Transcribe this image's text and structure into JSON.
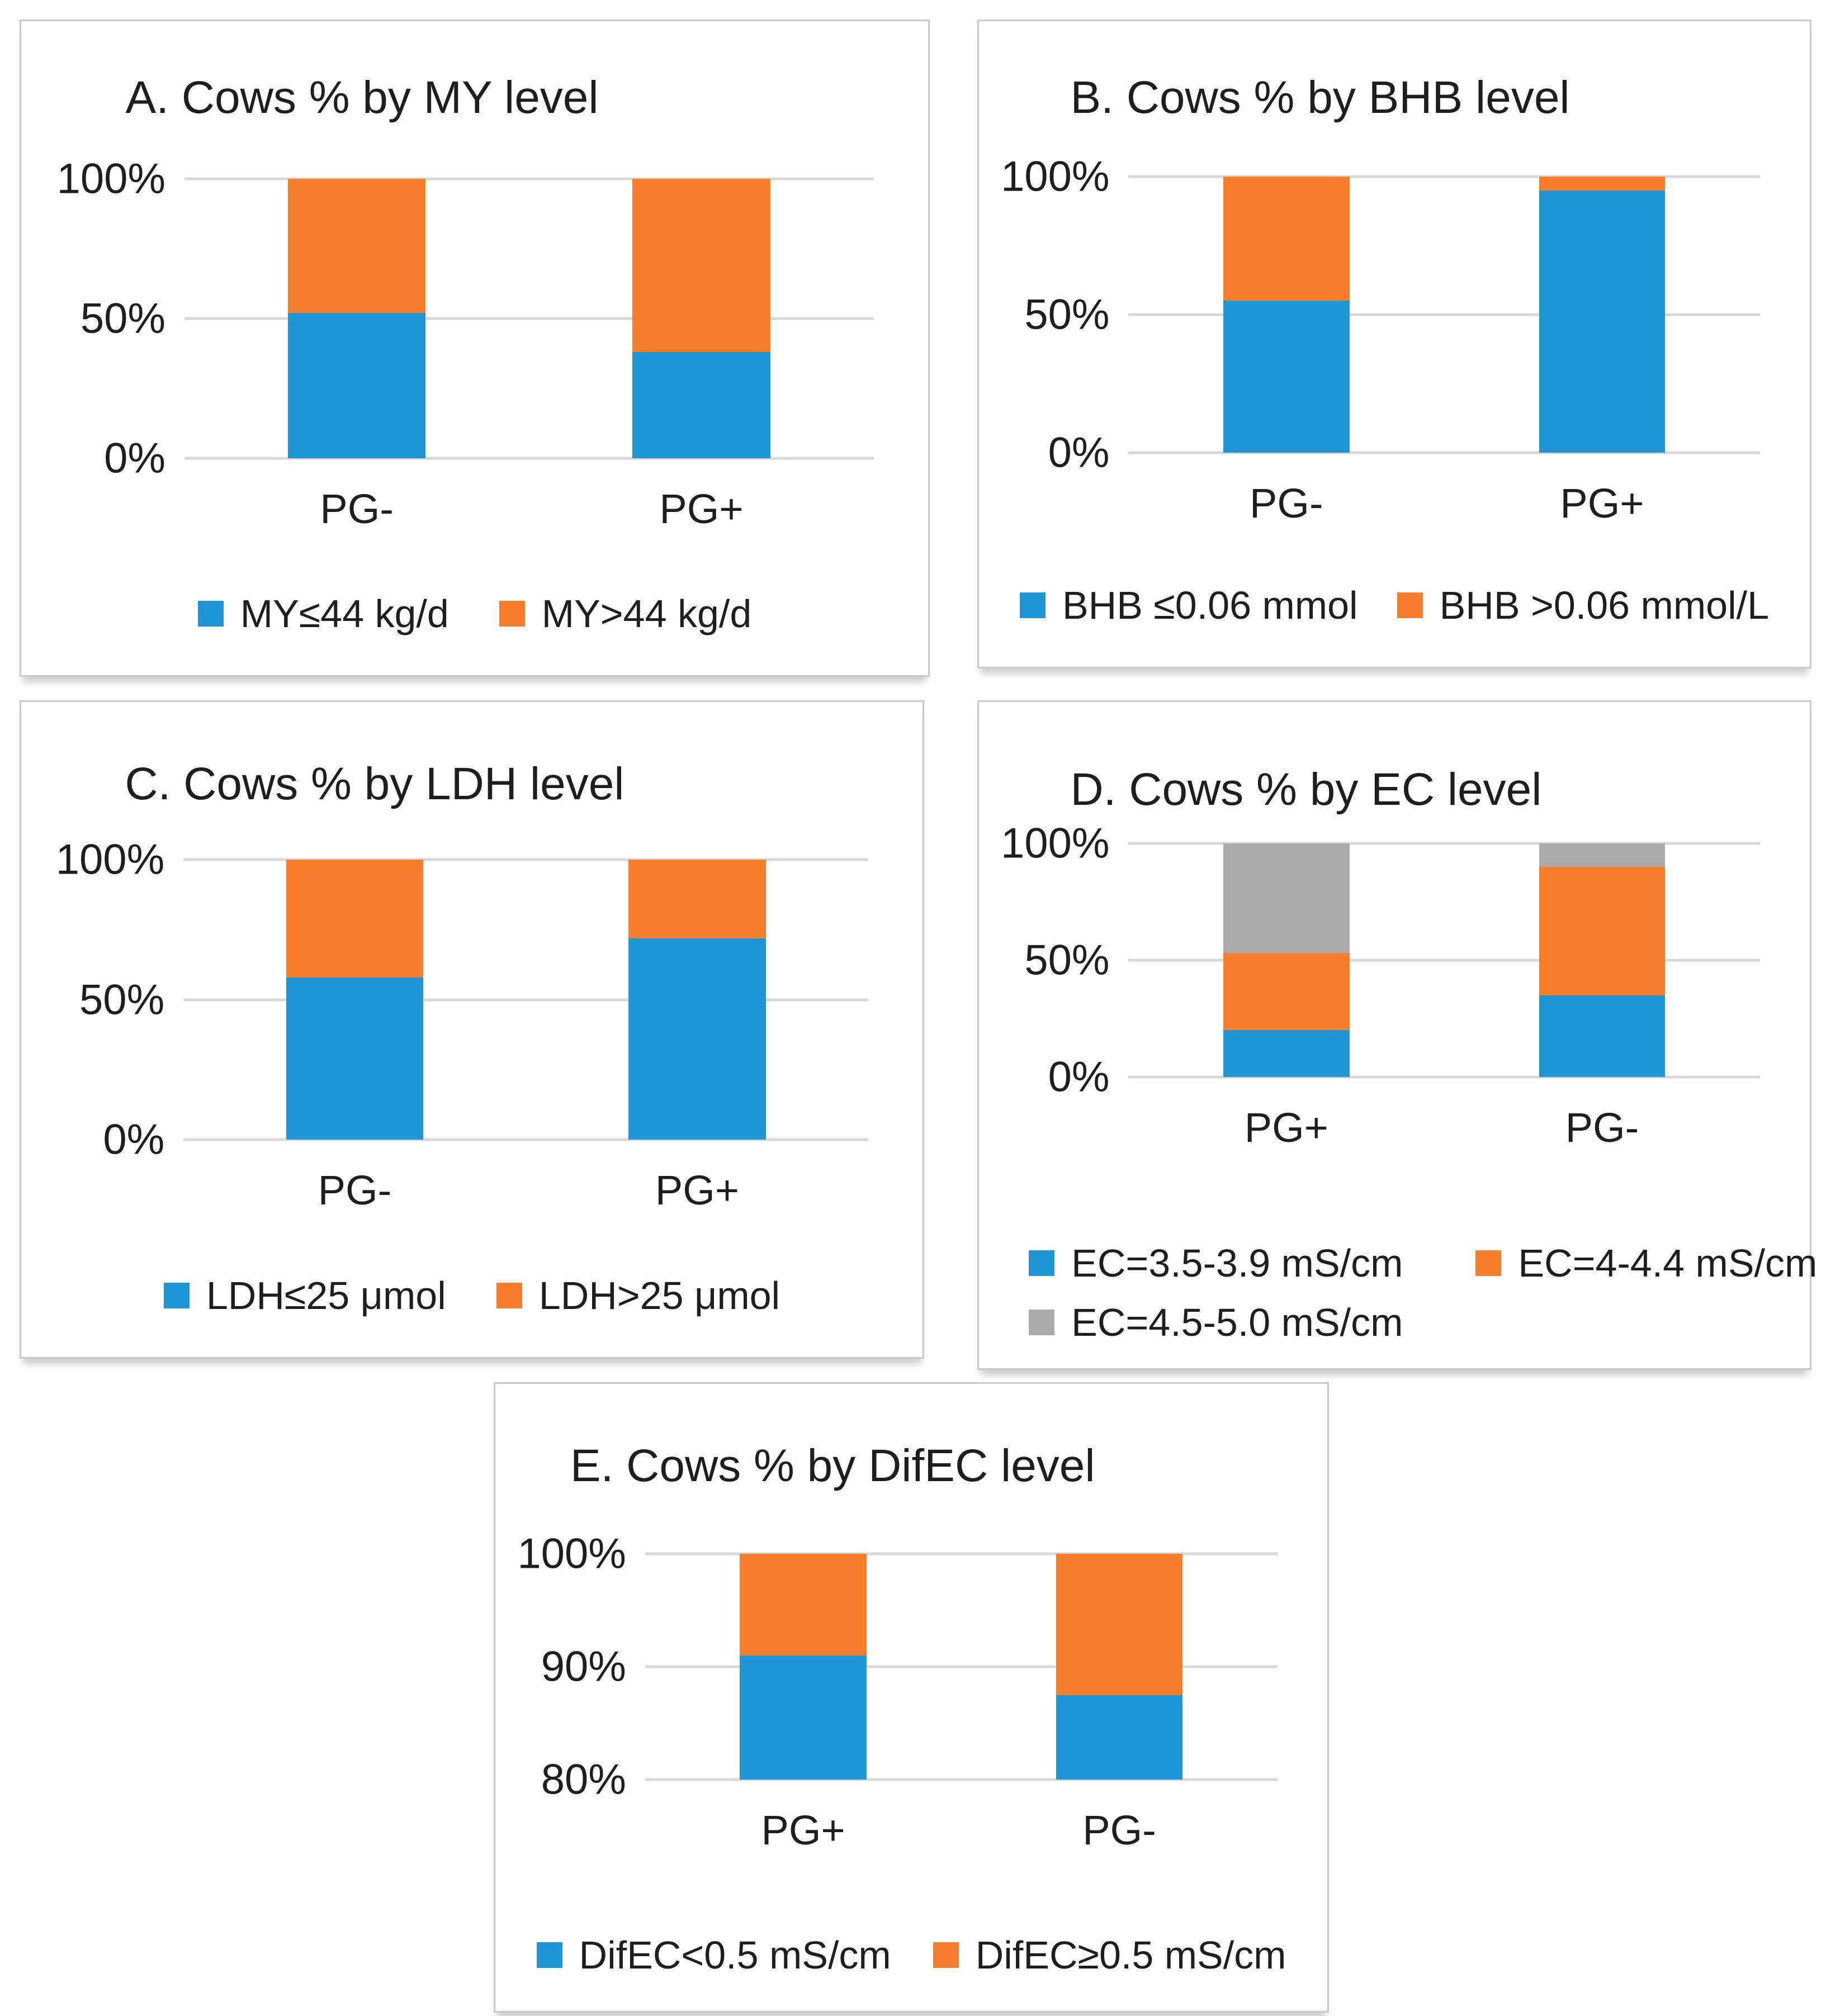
{
  "palette": {
    "blue": "#2196D6",
    "orange": "#F87E2B",
    "gray": "#ABABAB",
    "gridline": "#D8D8D8",
    "text": "#1E1E1E",
    "panel_border": "#C9C9C9"
  },
  "chart_data": [
    {
      "id": "A",
      "type": "bar",
      "subtype": "stacked-100",
      "title": "A. Cows % by MY level",
      "categories": [
        "PG-",
        "PG+"
      ],
      "series": [
        {
          "name": "MY≤44 kg/d",
          "color": "blue",
          "values": [
            52,
            38
          ]
        },
        {
          "name": "MY>44 kg/d",
          "color": "orange",
          "values": [
            48,
            62
          ]
        }
      ],
      "ymin": 0,
      "ymax": 100,
      "yticks": [
        {
          "value": 0,
          "label": "0%"
        },
        {
          "value": 50,
          "label": "50%"
        },
        {
          "value": 100,
          "label": "100%"
        }
      ],
      "grid": true,
      "legend_position": "bottom"
    },
    {
      "id": "B",
      "type": "bar",
      "subtype": "stacked-100",
      "title": "B. Cows % by BHB level",
      "categories": [
        "PG-",
        "PG+"
      ],
      "series": [
        {
          "name": "BHB ≤0.06 mmol",
          "color": "blue",
          "values": [
            55,
            95
          ]
        },
        {
          "name": "BHB >0.06 mmol/L",
          "color": "orange",
          "values": [
            45,
            5
          ]
        }
      ],
      "ymin": 0,
      "ymax": 100,
      "yticks": [
        {
          "value": 0,
          "label": "0%"
        },
        {
          "value": 50,
          "label": "50%"
        },
        {
          "value": 100,
          "label": "100%"
        }
      ],
      "grid": true,
      "legend_position": "bottom"
    },
    {
      "id": "C",
      "type": "bar",
      "subtype": "stacked-100",
      "title": "C. Cows % by LDH level",
      "categories": [
        "PG-",
        "PG+"
      ],
      "series": [
        {
          "name": "LDH≤25 μmol",
          "color": "blue",
          "values": [
            58,
            72
          ]
        },
        {
          "name": "LDH>25 μmol",
          "color": "orange",
          "values": [
            42,
            28
          ]
        }
      ],
      "ymin": 0,
      "ymax": 100,
      "yticks": [
        {
          "value": 0,
          "label": "0%"
        },
        {
          "value": 50,
          "label": "50%"
        },
        {
          "value": 100,
          "label": "100%"
        }
      ],
      "grid": true,
      "legend_position": "bottom"
    },
    {
      "id": "D",
      "type": "bar",
      "subtype": "stacked-100",
      "title": "D. Cows % by EC level",
      "categories": [
        "PG+",
        "PG-"
      ],
      "series": [
        {
          "name": "EC=3.5-3.9 mS/cm",
          "color": "blue",
          "values": [
            20,
            35
          ]
        },
        {
          "name": "EC=4-4.4 mS/cm",
          "color": "orange",
          "values": [
            33,
            55
          ]
        },
        {
          "name": "EC=4.5-5.0 mS/cm",
          "color": "gray",
          "values": [
            47,
            10
          ]
        }
      ],
      "ymin": 0,
      "ymax": 100,
      "yticks": [
        {
          "value": 0,
          "label": "0%"
        },
        {
          "value": 50,
          "label": "50%"
        },
        {
          "value": 100,
          "label": "100%"
        }
      ],
      "grid": true,
      "legend_position": "bottom-left-two-rows"
    },
    {
      "id": "E",
      "type": "bar",
      "subtype": "stacked-100",
      "title": "E. Cows % by DifEC level",
      "categories": [
        "PG+",
        "PG-"
      ],
      "series": [
        {
          "name": "DifEC<0.5 mS/cm",
          "color": "blue",
          "values": [
            91,
            87.5
          ]
        },
        {
          "name": "DifEC≥0.5  mS/cm",
          "color": "orange",
          "values": [
            9,
            12.5
          ]
        }
      ],
      "ymin": 80,
      "ymax": 100,
      "yticks": [
        {
          "value": 80,
          "label": "80%"
        },
        {
          "value": 90,
          "label": "90%"
        },
        {
          "value": 100,
          "label": "100%"
        }
      ],
      "grid": true,
      "legend_position": "bottom"
    }
  ]
}
